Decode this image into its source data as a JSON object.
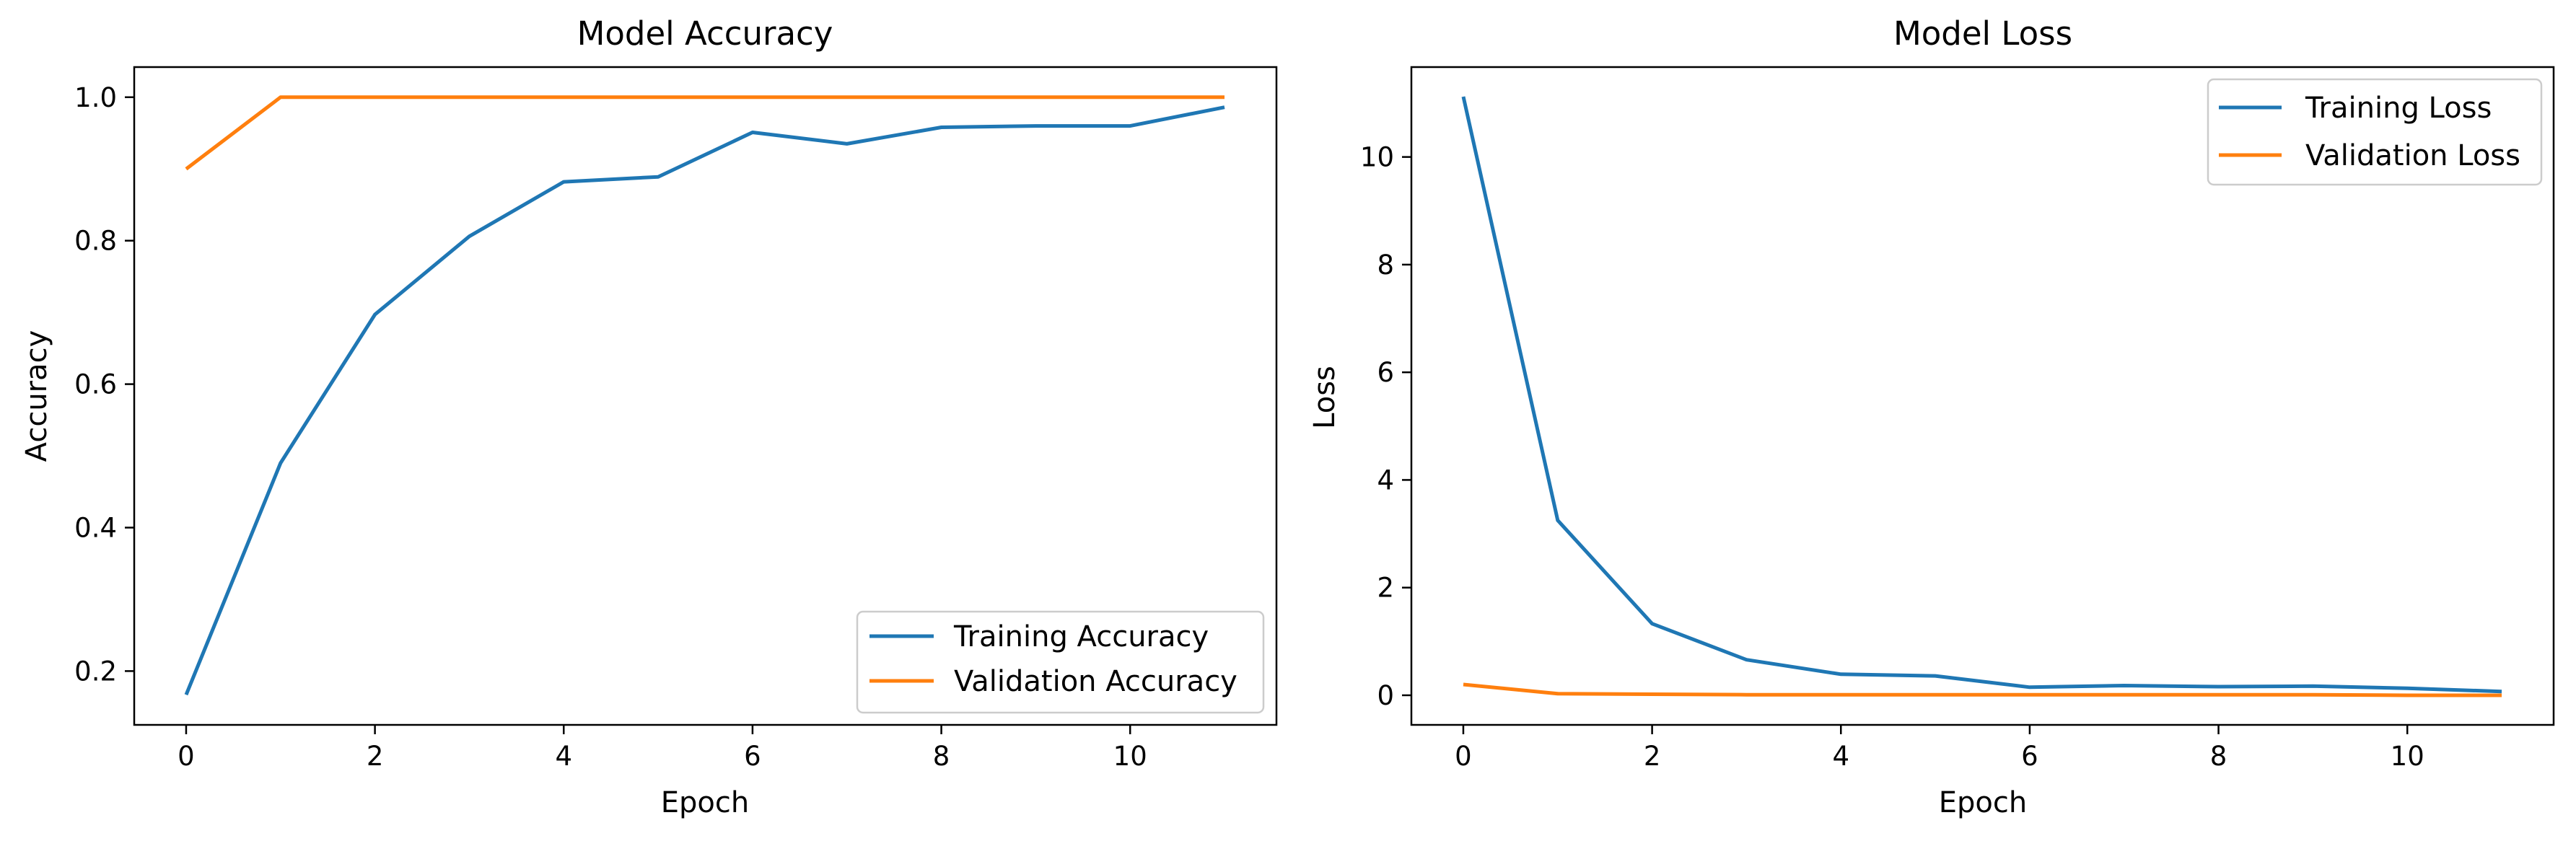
{
  "chart_data": [
    {
      "type": "line",
      "title": "Model Accuracy",
      "xlabel": "Epoch",
      "ylabel": "Accuracy",
      "x": [
        0,
        1,
        2,
        3,
        4,
        5,
        6,
        7,
        8,
        9,
        10,
        11
      ],
      "xlim": [
        -0.55,
        11.55
      ],
      "ylim": [
        0.125,
        1.042
      ],
      "xticks": [
        0,
        2,
        4,
        6,
        8,
        10
      ],
      "xtick_labels": [
        "0",
        "2",
        "4",
        "6",
        "8",
        "10"
      ],
      "yticks": [
        0.2,
        0.4,
        0.6,
        0.8,
        1.0
      ],
      "ytick_labels": [
        "0.2",
        "0.4",
        "0.6",
        "0.8",
        "1.0"
      ],
      "grid": false,
      "legend_position": "bottom-right",
      "series": [
        {
          "name": "Training Accuracy",
          "color": "#1f77b4",
          "values": [
            0.167,
            0.49,
            0.697,
            0.806,
            0.882,
            0.889,
            0.951,
            0.935,
            0.958,
            0.96,
            0.96,
            0.986
          ]
        },
        {
          "name": "Validation Accuracy",
          "color": "#ff7f0e",
          "values": [
            0.9,
            1.0,
            1.0,
            1.0,
            1.0,
            1.0,
            1.0,
            1.0,
            1.0,
            1.0,
            1.0,
            1.0
          ]
        }
      ]
    },
    {
      "type": "line",
      "title": "Model Loss",
      "xlabel": "Epoch",
      "ylabel": "Loss",
      "x": [
        0,
        1,
        2,
        3,
        4,
        5,
        6,
        7,
        8,
        9,
        10,
        11
      ],
      "xlim": [
        -0.55,
        11.55
      ],
      "ylim": [
        -0.55,
        11.67
      ],
      "xticks": [
        0,
        2,
        4,
        6,
        8,
        10
      ],
      "xtick_labels": [
        "0",
        "2",
        "4",
        "6",
        "8",
        "10"
      ],
      "yticks": [
        0,
        2,
        4,
        6,
        8,
        10
      ],
      "ytick_labels": [
        "0",
        "2",
        "4",
        "6",
        "8",
        "10"
      ],
      "grid": false,
      "legend_position": "top-right",
      "series": [
        {
          "name": "Training Loss",
          "color": "#1f77b4",
          "values": [
            11.12,
            3.25,
            1.33,
            0.66,
            0.39,
            0.36,
            0.15,
            0.18,
            0.16,
            0.17,
            0.13,
            0.07
          ]
        },
        {
          "name": "Validation Loss",
          "color": "#ff7f0e",
          "values": [
            0.2,
            0.03,
            0.02,
            0.01,
            0.01,
            0.01,
            0.01,
            0.01,
            0.01,
            0.01,
            0.0,
            0.0
          ]
        }
      ]
    }
  ]
}
